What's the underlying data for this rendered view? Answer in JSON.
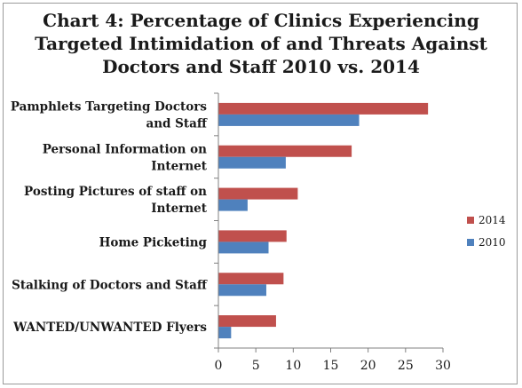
{
  "chart_data": {
    "type": "bar",
    "orientation": "horizontal",
    "title_lines": [
      "Chart 4: Percentage of Clinics Experiencing",
      "Targeted Intimidation of and Threats Against",
      "Doctors and Staff 2010 vs. 2014"
    ],
    "categories": [
      [
        "Pamphlets Targeting  Doctors",
        "and Staff"
      ],
      [
        "Personal Information on",
        "Internet"
      ],
      [
        "Posting Pictures of staff on",
        "Internet"
      ],
      [
        "Home Picketing"
      ],
      [
        "Stalking of Doctors and Staff"
      ],
      [
        "WANTED/UNWANTED Flyers"
      ]
    ],
    "series": [
      {
        "name": "2014",
        "color": "#c0504d",
        "values": [
          28,
          17.8,
          10.6,
          9.1,
          8.7,
          7.7
        ]
      },
      {
        "name": "2010",
        "color": "#4f81bd",
        "values": [
          18.8,
          9.0,
          3.9,
          6.7,
          6.4,
          1.7
        ]
      }
    ],
    "xlim": [
      0,
      30
    ],
    "xticks": [
      "0",
      "5",
      "10",
      "15",
      "20",
      "25",
      "30"
    ],
    "legend_position": "right",
    "grid": false
  }
}
